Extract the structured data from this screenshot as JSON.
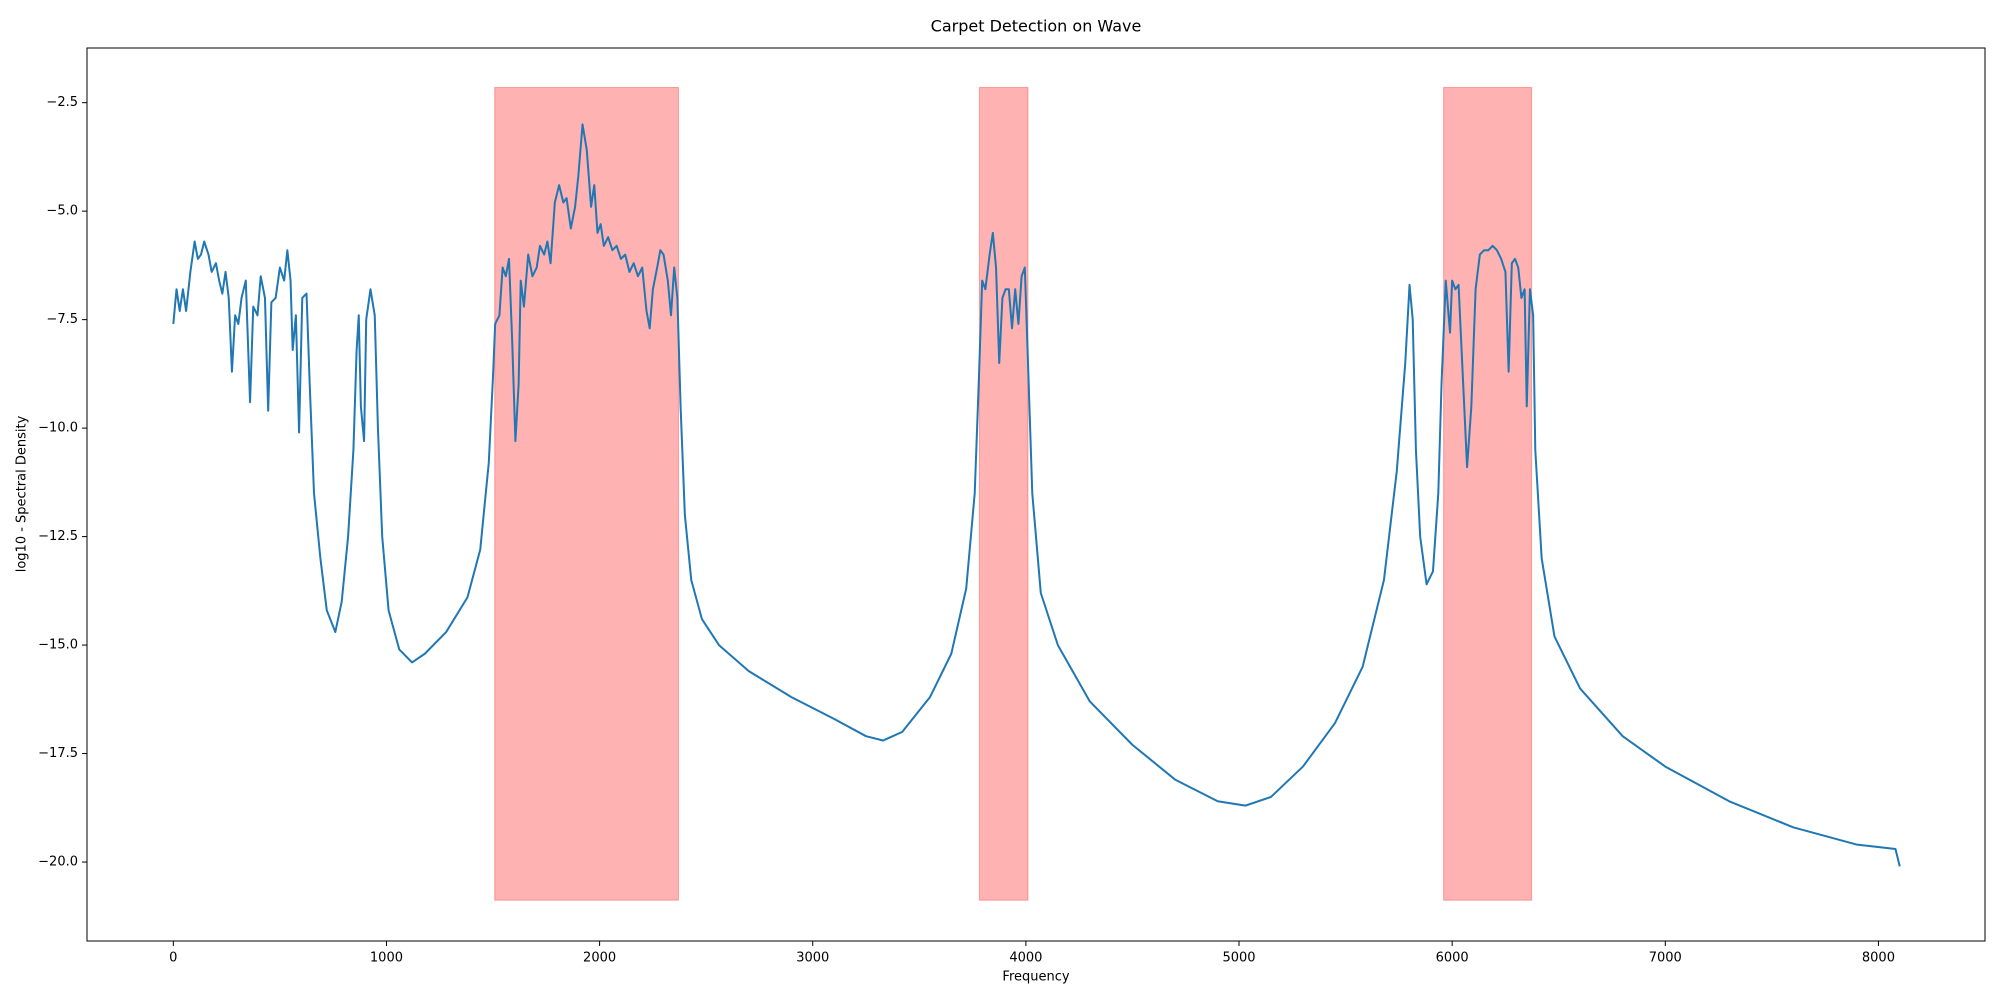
{
  "chart_data": {
    "type": "line",
    "title": "Carpet Detection on Wave",
    "xlabel": "Frequency",
    "ylabel": "log10 - Spectral Density",
    "color": "#1f77b4",
    "x": [
      0,
      15,
      30,
      45,
      60,
      80,
      100,
      115,
      130,
      145,
      165,
      180,
      200,
      215,
      230,
      245,
      260,
      275,
      290,
      305,
      320,
      340,
      360,
      375,
      395,
      410,
      430,
      445,
      460,
      480,
      500,
      520,
      535,
      550,
      560,
      575,
      590,
      605,
      625,
      640,
      660,
      690,
      720,
      760,
      790,
      820,
      845,
      860,
      870,
      880,
      895,
      905,
      925,
      945,
      960,
      980,
      1010,
      1060,
      1120,
      1180,
      1280,
      1380,
      1440,
      1480,
      1500,
      1510,
      1530,
      1545,
      1560,
      1575,
      1590,
      1605,
      1620,
      1630,
      1645,
      1665,
      1685,
      1705,
      1720,
      1740,
      1755,
      1770,
      1790,
      1810,
      1830,
      1845,
      1865,
      1885,
      1900,
      1920,
      1940,
      1960,
      1975,
      1990,
      2005,
      2020,
      2040,
      2060,
      2080,
      2100,
      2120,
      2140,
      2160,
      2180,
      2200,
      2220,
      2235,
      2250,
      2270,
      2285,
      2300,
      2320,
      2335,
      2350,
      2365,
      2380,
      2400,
      2430,
      2480,
      2560,
      2700,
      2900,
      3100,
      3250,
      3330,
      3420,
      3550,
      3650,
      3720,
      3760,
      3780,
      3795,
      3810,
      3830,
      3845,
      3860,
      3875,
      3890,
      3905,
      3920,
      3935,
      3950,
      3965,
      3980,
      3995,
      4010,
      4030,
      4070,
      4150,
      4300,
      4500,
      4700,
      4900,
      5030,
      5150,
      5300,
      5450,
      5580,
      5680,
      5740,
      5780,
      5800,
      5815,
      5830,
      5850,
      5880,
      5910,
      5935,
      5950,
      5970,
      5990,
      6000,
      6015,
      6030,
      6050,
      6070,
      6090,
      6110,
      6130,
      6150,
      6170,
      6190,
      6210,
      6230,
      6250,
      6265,
      6280,
      6295,
      6310,
      6325,
      6340,
      6350,
      6365,
      6380,
      6390,
      6420,
      6480,
      6600,
      6800,
      7000,
      7300,
      7600,
      7900,
      8080,
      8100
    ],
    "values": [
      -7.6,
      -6.8,
      -7.3,
      -6.8,
      -7.3,
      -6.4,
      -5.7,
      -6.1,
      -6.0,
      -5.7,
      -6.0,
      -6.4,
      -6.2,
      -6.6,
      -6.9,
      -6.4,
      -7.0,
      -8.7,
      -7.4,
      -7.6,
      -7.0,
      -6.6,
      -9.4,
      -7.2,
      -7.4,
      -6.5,
      -7.0,
      -9.6,
      -7.1,
      -7.0,
      -6.3,
      -6.6,
      -5.9,
      -6.6,
      -8.2,
      -7.4,
      -10.1,
      -7.0,
      -6.9,
      -9.0,
      -11.5,
      -13.0,
      -14.2,
      -14.7,
      -14.0,
      -12.5,
      -10.5,
      -8.2,
      -7.4,
      -9.5,
      -10.3,
      -7.5,
      -6.8,
      -7.4,
      -10.0,
      -12.5,
      -14.2,
      -15.1,
      -15.4,
      -15.2,
      -14.7,
      -13.9,
      -12.8,
      -10.8,
      -8.8,
      -7.6,
      -7.4,
      -6.3,
      -6.5,
      -6.1,
      -8.0,
      -10.3,
      -9.0,
      -6.6,
      -7.2,
      -6.0,
      -6.5,
      -6.3,
      -5.8,
      -6.0,
      -5.7,
      -6.2,
      -4.8,
      -4.4,
      -4.8,
      -4.7,
      -5.4,
      -4.9,
      -4.2,
      -3.0,
      -3.6,
      -4.9,
      -4.4,
      -5.5,
      -5.3,
      -5.8,
      -5.6,
      -5.9,
      -5.8,
      -6.1,
      -6.0,
      -6.4,
      -6.2,
      -6.5,
      -6.3,
      -7.3,
      -7.7,
      -6.8,
      -6.3,
      -5.9,
      -6.0,
      -6.6,
      -7.4,
      -6.3,
      -7.0,
      -9.5,
      -12.0,
      -13.5,
      -14.4,
      -15.0,
      -15.6,
      -16.2,
      -16.7,
      -17.1,
      -17.2,
      -17.0,
      -16.2,
      -15.2,
      -13.7,
      -11.5,
      -8.8,
      -6.6,
      -6.8,
      -6.0,
      -5.5,
      -6.3,
      -8.5,
      -7.0,
      -6.8,
      -6.8,
      -7.7,
      -6.8,
      -7.6,
      -6.5,
      -6.3,
      -8.5,
      -11.5,
      -13.8,
      -15.0,
      -16.3,
      -17.3,
      -18.1,
      -18.6,
      -18.7,
      -18.5,
      -17.8,
      -16.8,
      -15.5,
      -13.5,
      -11.0,
      -8.5,
      -6.7,
      -7.5,
      -10.5,
      -12.5,
      -13.6,
      -13.3,
      -11.5,
      -9.0,
      -6.6,
      -7.8,
      -6.6,
      -6.8,
      -6.7,
      -8.8,
      -10.9,
      -9.5,
      -6.8,
      -6.0,
      -5.9,
      -5.9,
      -5.8,
      -5.9,
      -6.1,
      -6.4,
      -8.7,
      -6.2,
      -6.1,
      -6.3,
      -7.0,
      -6.8,
      -9.5,
      -6.8,
      -7.4,
      -10.5,
      -13.0,
      -14.8,
      -16.0,
      -17.1,
      -17.8,
      -18.6,
      -19.2,
      -19.6,
      -19.7,
      -20.1
    ],
    "spans": [
      [
        1508,
        2370
      ],
      [
        3782,
        4010
      ],
      [
        5960,
        6373
      ]
    ],
    "span_ylim": [
      -20.88,
      -2.15
    ],
    "span_color": "#ff0000",
    "xlim": [
      -405,
      8500
    ],
    "ylim": [
      -21.82,
      -1.24
    ],
    "xticks": [
      0,
      1000,
      2000,
      3000,
      4000,
      5000,
      6000,
      7000,
      8000
    ],
    "yticks": [
      {
        "value": -20,
        "label": "−20.0"
      },
      {
        "value": -17.5,
        "label": "−17.5"
      },
      {
        "value": -15,
        "label": "−15.0"
      },
      {
        "value": -12.5,
        "label": "−12.5"
      },
      {
        "value": -10,
        "label": "−10.0"
      },
      {
        "value": -7.5,
        "label": "−7.5"
      },
      {
        "value": -5,
        "label": "−5.0"
      },
      {
        "value": -2.5,
        "label": "−2.5"
      }
    ],
    "grid": false
  }
}
